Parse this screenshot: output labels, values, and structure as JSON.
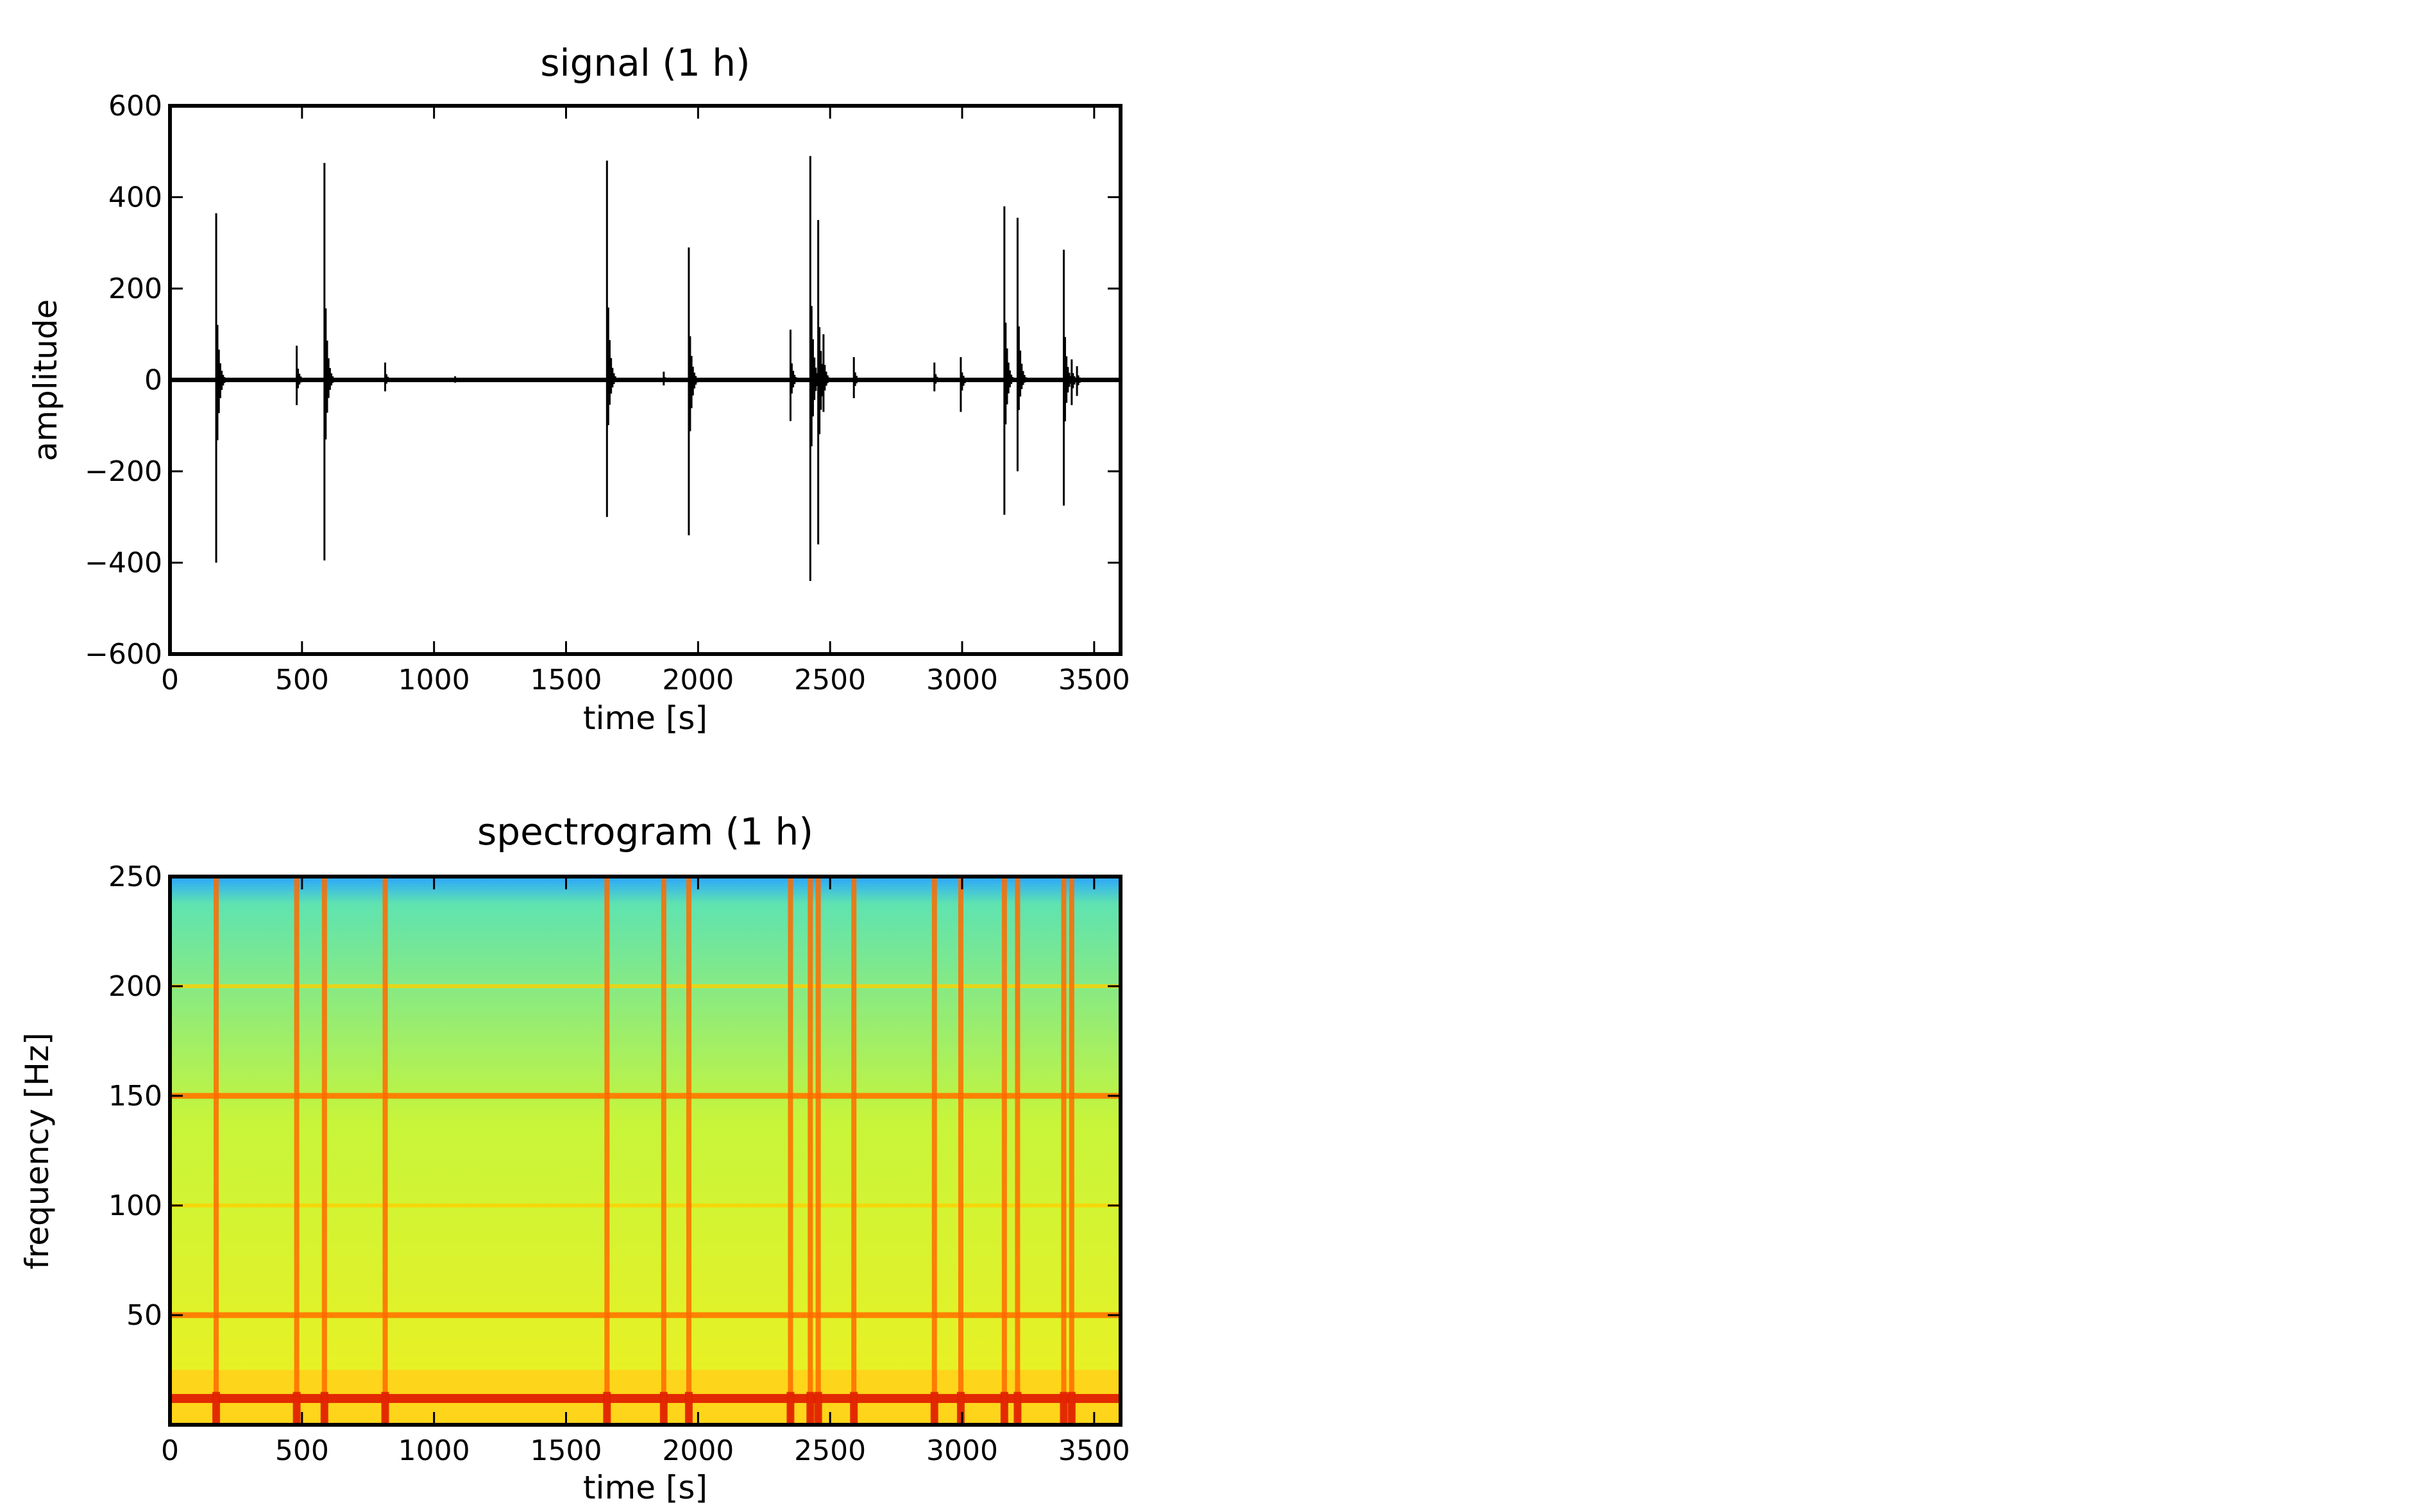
{
  "chart_data": [
    {
      "type": "line",
      "title": "signal (1 h)",
      "xlabel": "time [s]",
      "ylabel": "amplitude",
      "xlim": [
        0,
        3600
      ],
      "ylim": [
        -600,
        600
      ],
      "xticks": [
        0,
        500,
        1000,
        1500,
        2000,
        2500,
        3000,
        3500
      ],
      "yticks": [
        600,
        400,
        200,
        0,
        -200,
        -400,
        -600
      ],
      "ytick_labels": [
        "600",
        "400",
        "200",
        "0",
        "−200",
        "−400",
        "−600"
      ],
      "grid": false,
      "series_color": "#000000",
      "baseline": 0,
      "spikes": [
        {
          "t": 175,
          "max": 365,
          "min": -400
        },
        {
          "t": 480,
          "max": 75,
          "min": -55
        },
        {
          "t": 585,
          "max": 475,
          "min": -395
        },
        {
          "t": 815,
          "max": 38,
          "min": -25
        },
        {
          "t": 1080,
          "max": 8,
          "min": -6
        },
        {
          "t": 1655,
          "max": 480,
          "min": -300
        },
        {
          "t": 1870,
          "max": 18,
          "min": -12
        },
        {
          "t": 1965,
          "max": 290,
          "min": -340
        },
        {
          "t": 2350,
          "max": 110,
          "min": -90
        },
        {
          "t": 2425,
          "max": 490,
          "min": -440
        },
        {
          "t": 2455,
          "max": 350,
          "min": -360
        },
        {
          "t": 2475,
          "max": 100,
          "min": -70
        },
        {
          "t": 2590,
          "max": 50,
          "min": -40
        },
        {
          "t": 2895,
          "max": 38,
          "min": -25
        },
        {
          "t": 2995,
          "max": 50,
          "min": -70
        },
        {
          "t": 3160,
          "max": 380,
          "min": -295
        },
        {
          "t": 3210,
          "max": 355,
          "min": -200
        },
        {
          "t": 3385,
          "max": 285,
          "min": -275
        },
        {
          "t": 3415,
          "max": 45,
          "min": -55
        },
        {
          "t": 3435,
          "max": 30,
          "min": -35
        }
      ]
    },
    {
      "type": "heatmap",
      "title": "spectrogram (1 h)",
      "xlabel": "time [s]",
      "ylabel": "frequency [Hz]",
      "xlim": [
        0,
        3600
      ],
      "ylim": [
        0,
        250
      ],
      "xticks": [
        0,
        500,
        1000,
        1500,
        2000,
        2500,
        3000,
        3500
      ],
      "yticks": [
        250,
        200,
        150,
        100,
        50
      ],
      "colormap": "jet",
      "background_colors": [
        "#2aa6ff",
        "#5fe3b0",
        "#c8f53a",
        "#eef020"
      ],
      "band_color": "#ff7a00",
      "strong_band_color": "#e02000",
      "event_color": "#ff6a00",
      "horizontal_bands_hz": [
        {
          "f": 200,
          "strength": "weak"
        },
        {
          "f": 150,
          "strength": "strong"
        },
        {
          "f": 100,
          "strength": "weak"
        },
        {
          "f": 50,
          "strength": "strong"
        },
        {
          "f": 12,
          "strength": "very-strong"
        }
      ],
      "vertical_events_s": [
        175,
        480,
        585,
        815,
        1655,
        1870,
        1965,
        2350,
        2425,
        2455,
        2590,
        2895,
        2995,
        3160,
        3210,
        3385,
        3415
      ]
    }
  ]
}
